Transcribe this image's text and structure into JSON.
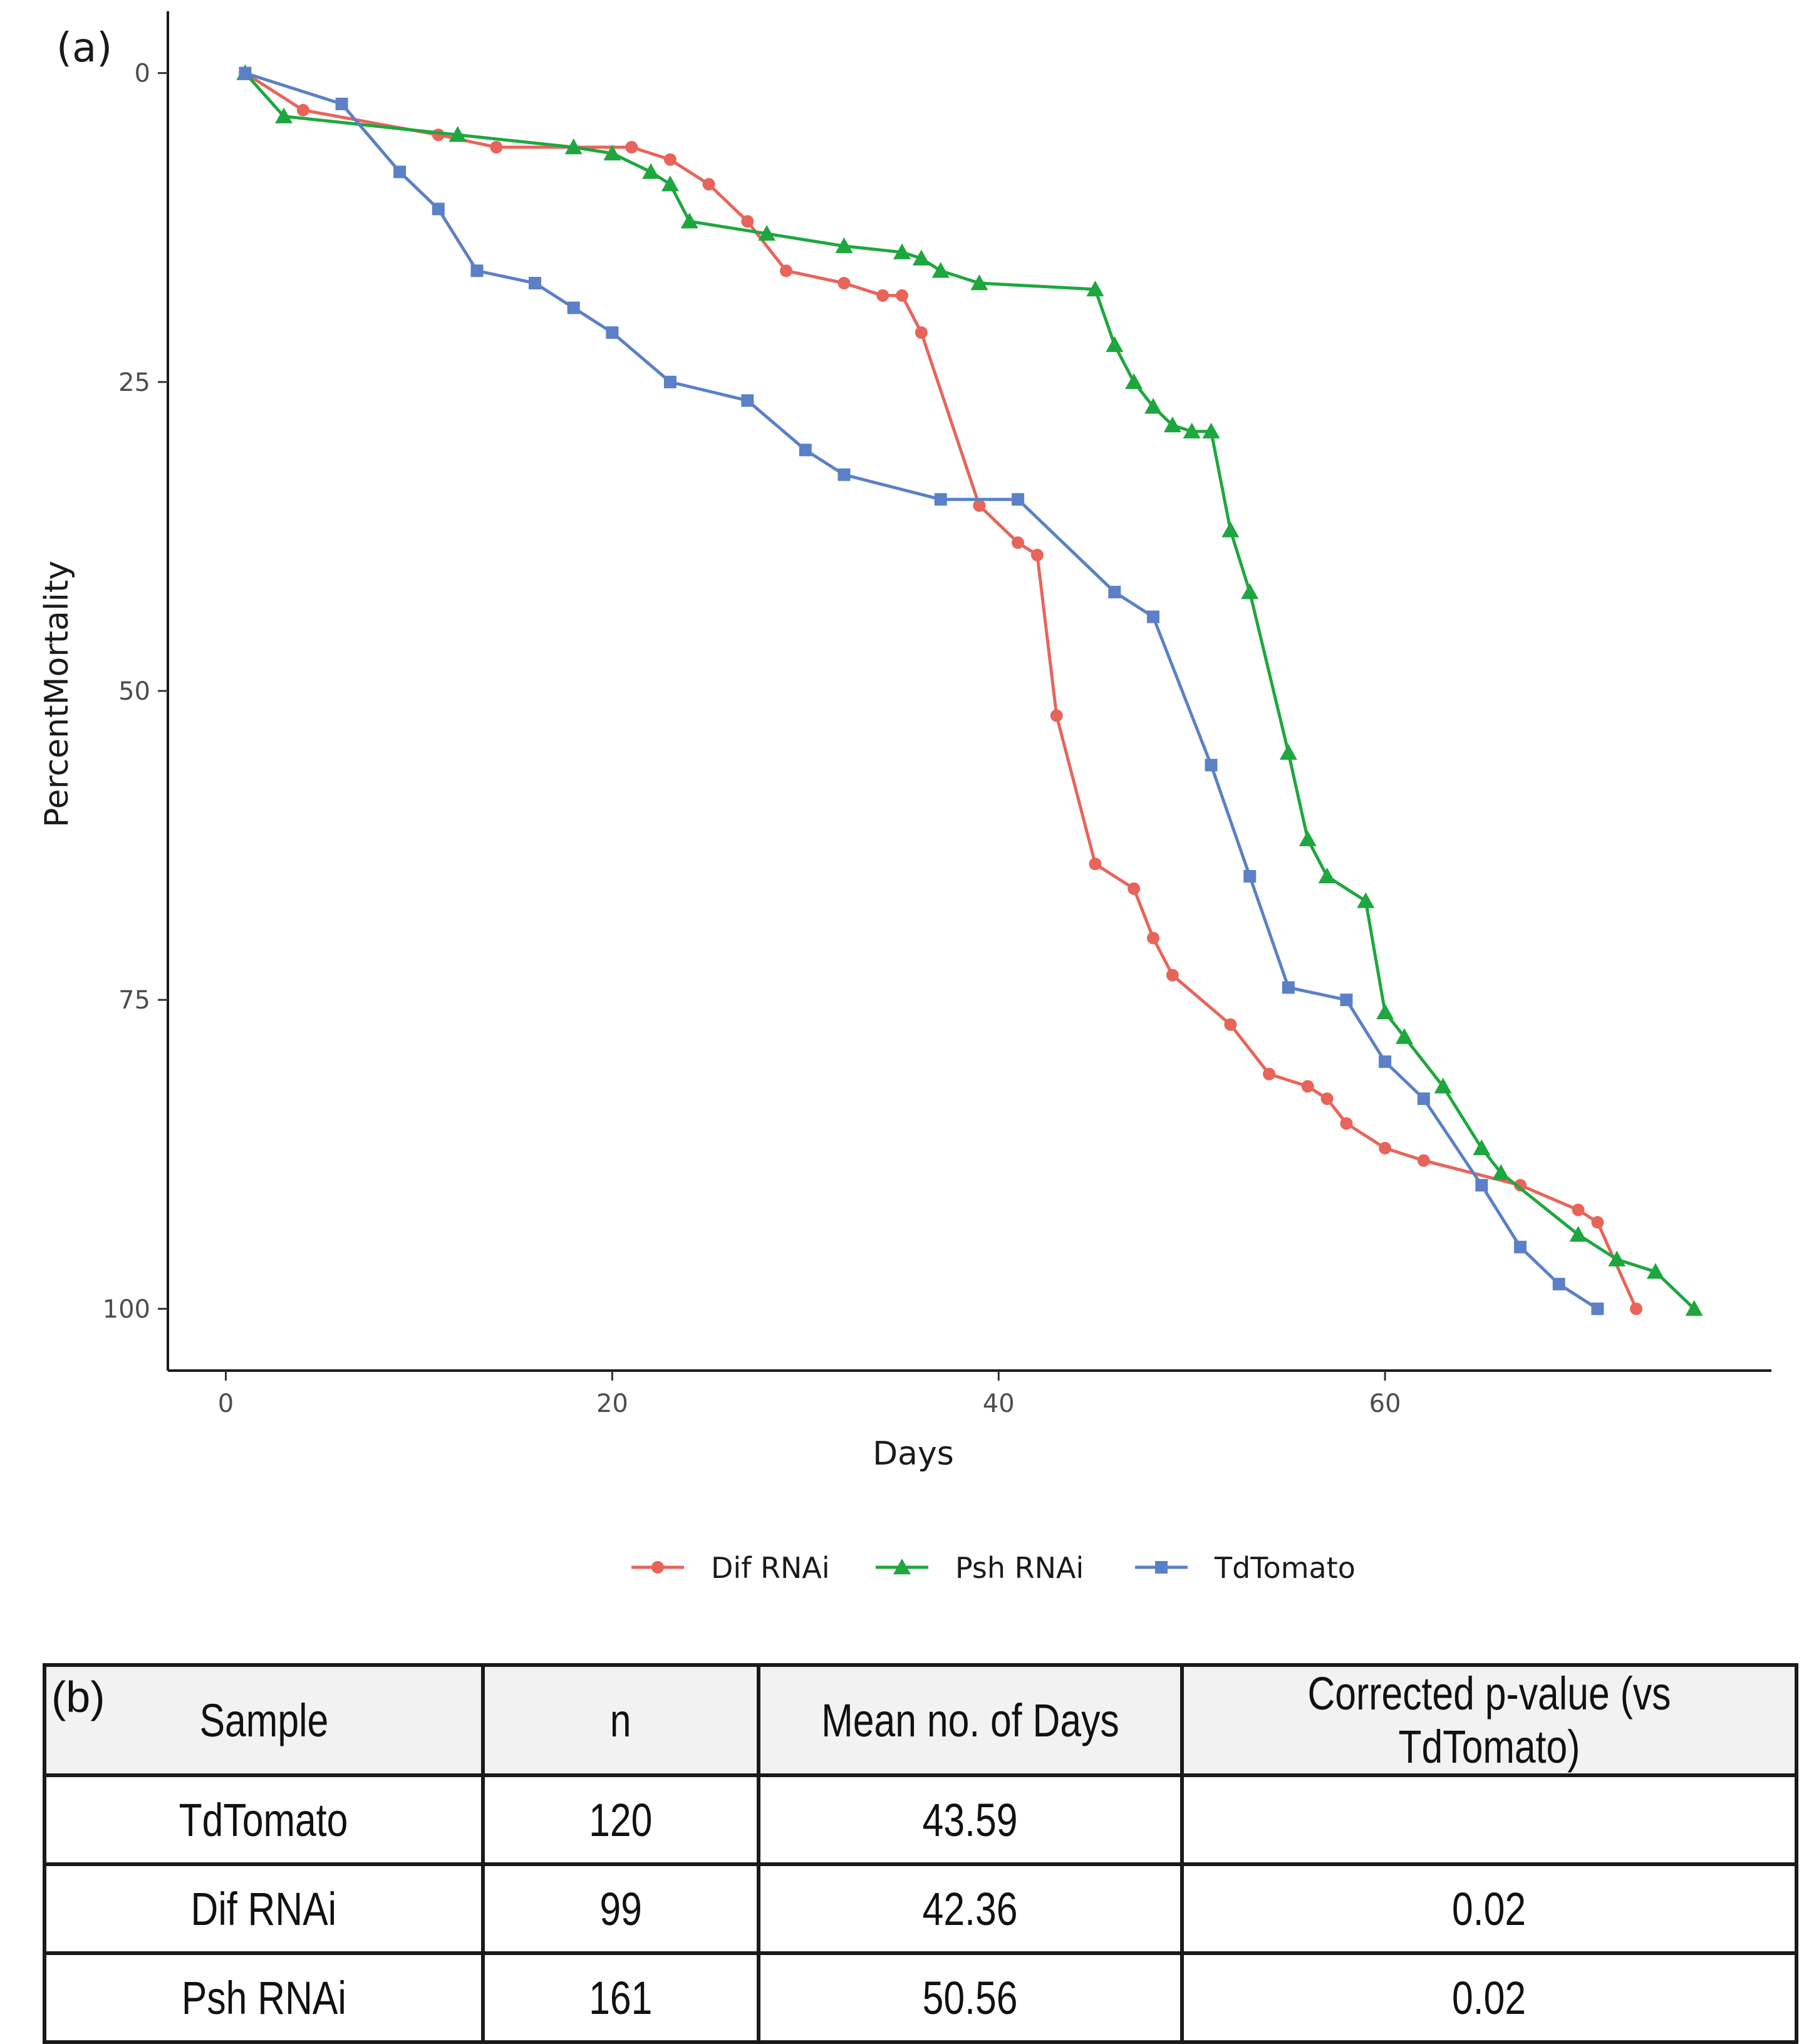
{
  "panel_a_label": "(a)",
  "panel_b_label": "(b)",
  "chart_data": {
    "type": "line",
    "title": "",
    "xlabel": "Days",
    "ylabel": "PercentMortality",
    "xlim": [
      -3,
      80
    ],
    "ylim": [
      -5,
      105
    ],
    "y_reversed": true,
    "xticks": [
      0,
      20,
      40,
      60
    ],
    "yticks": [
      0,
      25,
      50,
      75,
      100
    ],
    "grid": false,
    "legend": "bottom",
    "series": [
      {
        "name": "Dif RNAi",
        "color": "#e8645a",
        "marker": "circle",
        "x": [
          1,
          4,
          11,
          14,
          21,
          23,
          25,
          27,
          29,
          32,
          34,
          35,
          36,
          39,
          41,
          42,
          43,
          45,
          47,
          48,
          49,
          52,
          54,
          56,
          57,
          58,
          60,
          62,
          67,
          70,
          71,
          73
        ],
        "y": [
          0,
          3,
          5,
          6,
          6,
          7,
          9,
          12,
          16,
          17,
          18,
          18,
          21,
          35,
          38,
          39,
          52,
          64,
          66,
          70,
          73,
          77,
          81,
          82,
          83,
          85,
          87,
          88,
          90,
          92,
          93,
          100
        ]
      },
      {
        "name": "Psh RNAi",
        "color": "#1ea73e",
        "marker": "triangle",
        "x": [
          1,
          3,
          12,
          18,
          20,
          22,
          23,
          24,
          28,
          32,
          35,
          36,
          37,
          39,
          45,
          46,
          47,
          48,
          49,
          50,
          51,
          52,
          53,
          55,
          56,
          57,
          59,
          60,
          61,
          63,
          65,
          66,
          70,
          72,
          74,
          76
        ],
        "y": [
          0,
          3.5,
          5,
          6,
          6.5,
          8,
          9,
          12,
          13,
          14,
          14.5,
          15,
          16,
          17,
          17.5,
          22,
          25,
          27,
          28.5,
          29,
          29,
          37,
          42,
          55,
          62,
          65,
          67,
          76,
          78,
          82,
          87,
          89,
          94,
          96,
          97,
          100
        ]
      },
      {
        "name": "TdTomato",
        "color": "#5b80c8",
        "marker": "square",
        "x": [
          1,
          6,
          9,
          11,
          13,
          16,
          18,
          20,
          23,
          27,
          30,
          32,
          37,
          41,
          46,
          48,
          51,
          53,
          55,
          58,
          60,
          62,
          65,
          67,
          69,
          71
        ],
        "y": [
          0,
          2.5,
          8,
          11,
          16,
          17,
          19,
          21,
          25,
          26.5,
          30.5,
          32.5,
          34.5,
          34.5,
          42,
          44,
          56,
          65,
          74,
          75,
          80,
          83,
          90,
          95,
          98,
          100
        ]
      }
    ]
  },
  "table": {
    "headers": [
      "Sample",
      "n",
      "Mean no. of Days",
      "Corrected p-value (vs TdTomato)"
    ],
    "rows": [
      [
        "TdTomato",
        "120",
        "43.59",
        ""
      ],
      [
        "Dif RNAi",
        "99",
        "42.36",
        "0.02"
      ],
      [
        "Psh RNAi",
        "161",
        "50.56",
        "0.02"
      ]
    ]
  }
}
